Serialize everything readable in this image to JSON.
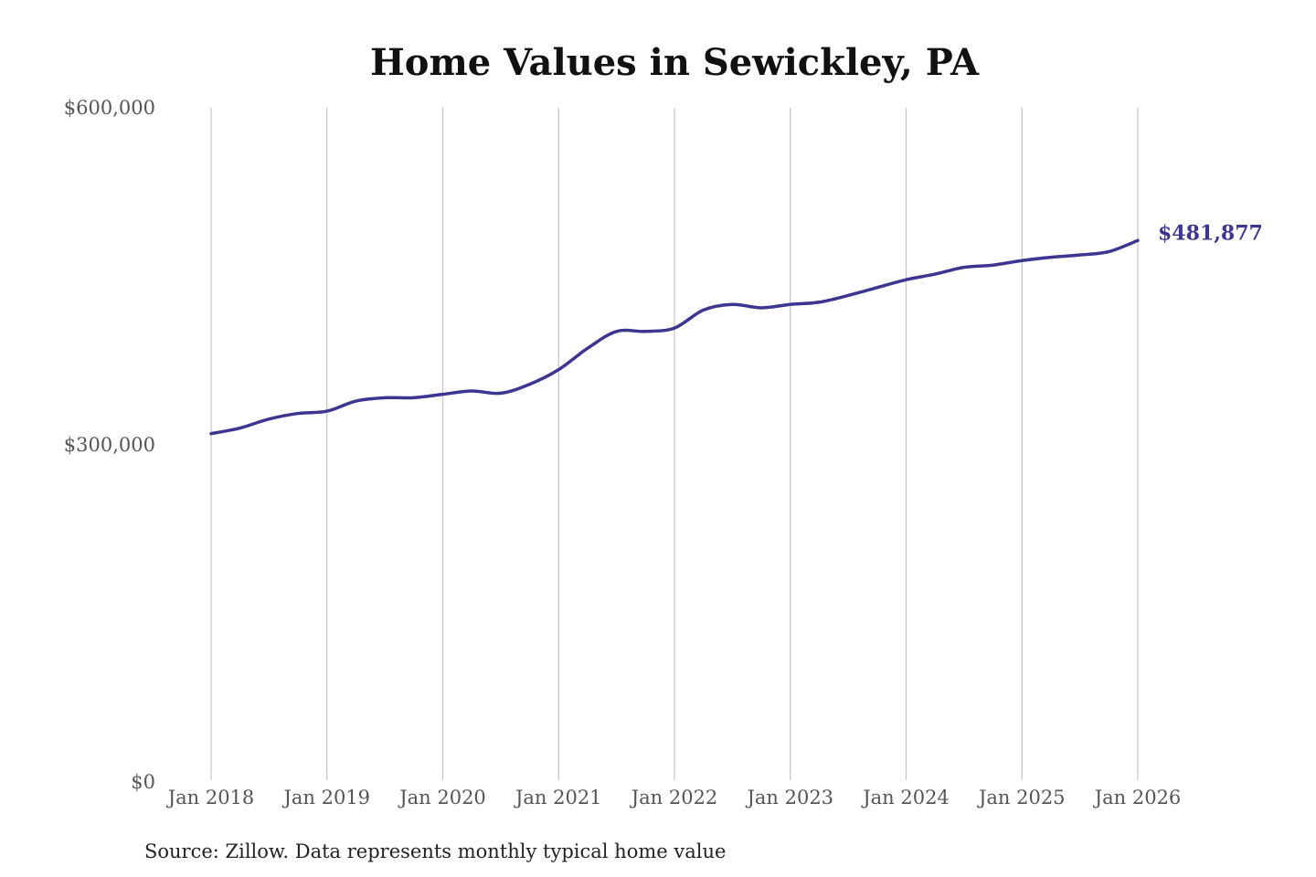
{
  "chart_data": {
    "type": "line",
    "title": "Home Values in Sewickley, PA",
    "xlabel": "",
    "ylabel": "",
    "ylim": [
      0,
      600000
    ],
    "xlim": [
      "2018-01",
      "2026-01"
    ],
    "y_ticks": [
      {
        "value": 0,
        "label": "$0"
      },
      {
        "value": 300000,
        "label": "$300,000"
      },
      {
        "value": 600000,
        "label": "$600,000"
      }
    ],
    "x_ticks": [
      {
        "value": "2018-01",
        "label": "Jan 2018"
      },
      {
        "value": "2019-01",
        "label": "Jan 2019"
      },
      {
        "value": "2020-01",
        "label": "Jan 2020"
      },
      {
        "value": "2021-01",
        "label": "Jan 2021"
      },
      {
        "value": "2022-01",
        "label": "Jan 2022"
      },
      {
        "value": "2023-01",
        "label": "Jan 2023"
      },
      {
        "value": "2024-01",
        "label": "Jan 2024"
      },
      {
        "value": "2025-01",
        "label": "Jan 2025"
      },
      {
        "value": "2026-01",
        "label": "Jan 2026"
      }
    ],
    "grid": "vertical",
    "color": "#3d3592",
    "series": [
      {
        "name": "",
        "points": [
          {
            "x": "2018-01",
            "y": 310000
          },
          {
            "x": "2018-04",
            "y": 315000
          },
          {
            "x": "2018-07",
            "y": 323000
          },
          {
            "x": "2018-10",
            "y": 328000
          },
          {
            "x": "2019-01",
            "y": 330000
          },
          {
            "x": "2019-04",
            "y": 339000
          },
          {
            "x": "2019-07",
            "y": 342000
          },
          {
            "x": "2019-10",
            "y": 342000
          },
          {
            "x": "2020-01",
            "y": 345000
          },
          {
            "x": "2020-04",
            "y": 348000
          },
          {
            "x": "2020-07",
            "y": 346000
          },
          {
            "x": "2020-10",
            "y": 354000
          },
          {
            "x": "2021-01",
            "y": 367000
          },
          {
            "x": "2021-04",
            "y": 386000
          },
          {
            "x": "2021-07",
            "y": 401000
          },
          {
            "x": "2021-10",
            "y": 401000
          },
          {
            "x": "2022-01",
            "y": 404000
          },
          {
            "x": "2022-04",
            "y": 420000
          },
          {
            "x": "2022-07",
            "y": 425000
          },
          {
            "x": "2022-10",
            "y": 422000
          },
          {
            "x": "2023-01",
            "y": 425000
          },
          {
            "x": "2023-04",
            "y": 427000
          },
          {
            "x": "2023-07",
            "y": 433000
          },
          {
            "x": "2023-10",
            "y": 440000
          },
          {
            "x": "2024-01",
            "y": 447000
          },
          {
            "x": "2024-04",
            "y": 452000
          },
          {
            "x": "2024-07",
            "y": 458000
          },
          {
            "x": "2024-10",
            "y": 460000
          },
          {
            "x": "2025-01",
            "y": 464000
          },
          {
            "x": "2025-04",
            "y": 467000
          },
          {
            "x": "2025-07",
            "y": 469000
          },
          {
            "x": "2025-10",
            "y": 472000
          },
          {
            "x": "2026-01",
            "y": 481877
          }
        ]
      }
    ],
    "annotations": [
      {
        "x": "2026-01",
        "y": 481877,
        "text": "$481,877"
      }
    ],
    "source": "Source: Zillow. Data represents monthly typical home value"
  }
}
